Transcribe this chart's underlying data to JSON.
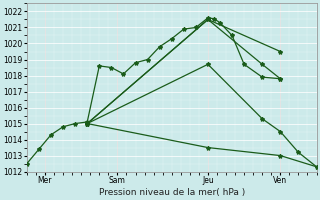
{
  "title": "Pression niveau de la mer( hPa )",
  "bg_color": "#cceaea",
  "line_color": "#1a5c1a",
  "xlim": [
    0,
    96
  ],
  "ylim": [
    1012,
    1022.5
  ],
  "yticks": [
    1012,
    1013,
    1014,
    1015,
    1016,
    1017,
    1018,
    1019,
    1020,
    1021,
    1022
  ],
  "xtick_positions": [
    6,
    30,
    60,
    84
  ],
  "xtick_labels": [
    "Mer",
    "Sam",
    "Jeu",
    "Ven"
  ],
  "vlines": [
    6,
    30,
    60,
    84
  ],
  "lines": [
    {
      "x": [
        0,
        4,
        8,
        12,
        16,
        20,
        24,
        28,
        32,
        36,
        40,
        44,
        48,
        52,
        56,
        60,
        62,
        64,
        68,
        72,
        78,
        84
      ],
      "y": [
        1012.5,
        1013.4,
        1014.3,
        1014.8,
        1015.0,
        1015.1,
        1018.6,
        1018.5,
        1018.1,
        1018.8,
        1019.0,
        1019.8,
        1020.3,
        1020.9,
        1021.0,
        1021.6,
        1021.55,
        1021.3,
        1020.5,
        1018.7,
        1017.9,
        1017.8
      ]
    },
    {
      "x": [
        20,
        60,
        84
      ],
      "y": [
        1015.0,
        1021.5,
        1019.5
      ]
    },
    {
      "x": [
        20,
        60,
        78,
        84
      ],
      "y": [
        1015.0,
        1021.5,
        1018.7,
        1017.8
      ]
    },
    {
      "x": [
        20,
        60,
        78,
        84,
        90,
        96
      ],
      "y": [
        1015.0,
        1018.7,
        1015.3,
        1014.5,
        1013.2,
        1012.3
      ]
    },
    {
      "x": [
        20,
        60,
        84,
        96
      ],
      "y": [
        1015.0,
        1013.5,
        1013.0,
        1012.3
      ]
    }
  ],
  "marker": "*",
  "marker_size": 3,
  "linewidth": 0.9,
  "grid_color": "white",
  "grid_alpha": 0.9,
  "minor_grid_alpha": 0.5
}
